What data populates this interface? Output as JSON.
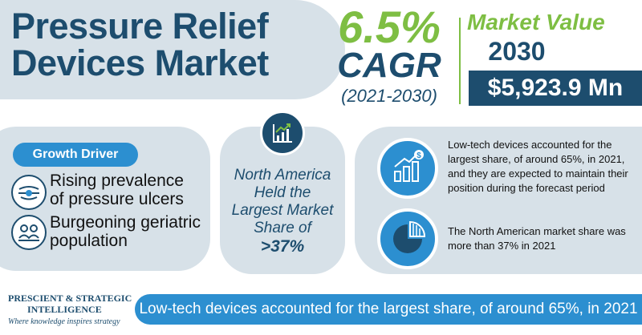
{
  "header": {
    "title_line1": "Pressure Relief",
    "title_line2": "Devices Market"
  },
  "cagr": {
    "value": "6.5%",
    "label": "CAGR",
    "period": "(2021-2030)"
  },
  "market_value": {
    "label": "Market Value",
    "year": "2030",
    "amount": "$5,923.9 Mn"
  },
  "growth_driver": {
    "heading": "Growth Driver",
    "items": [
      {
        "line1": "Rising prevalence",
        "line2": "of pressure ulcers",
        "icon": "pressure-ulcer-icon"
      },
      {
        "line1": "Burgeoning geriatric",
        "line2": "population",
        "icon": "geriatric-population-icon"
      }
    ]
  },
  "north_america": {
    "icon": "growth-chart-icon",
    "line1": "North America",
    "line2": "Held the",
    "line3": "Largest Market",
    "line4": "Share of",
    "value": ">37%"
  },
  "insights": [
    {
      "icon": "bar-chart-dollar-icon",
      "text": "Low-tech devices accounted for the largest share, of around 65%, in 2021, and they are expected to maintain their position during the forecast period"
    },
    {
      "icon": "pie-chart-icon",
      "text": "The North American market share was more than 37% in 2021"
    }
  ],
  "footer": {
    "logo_line1": "PRESCIENT & STRATEGIC",
    "logo_line2": "INTELLIGENCE",
    "logo_tagline": "Where knowledge inspires strategy",
    "banner": "Low-tech devices accounted for the largest share, of around 65%, in 2021"
  },
  "colors": {
    "navy": "#1d4d6e",
    "green": "#7ebe43",
    "blue": "#2c8fd0",
    "panel": "#d7e1e8"
  }
}
